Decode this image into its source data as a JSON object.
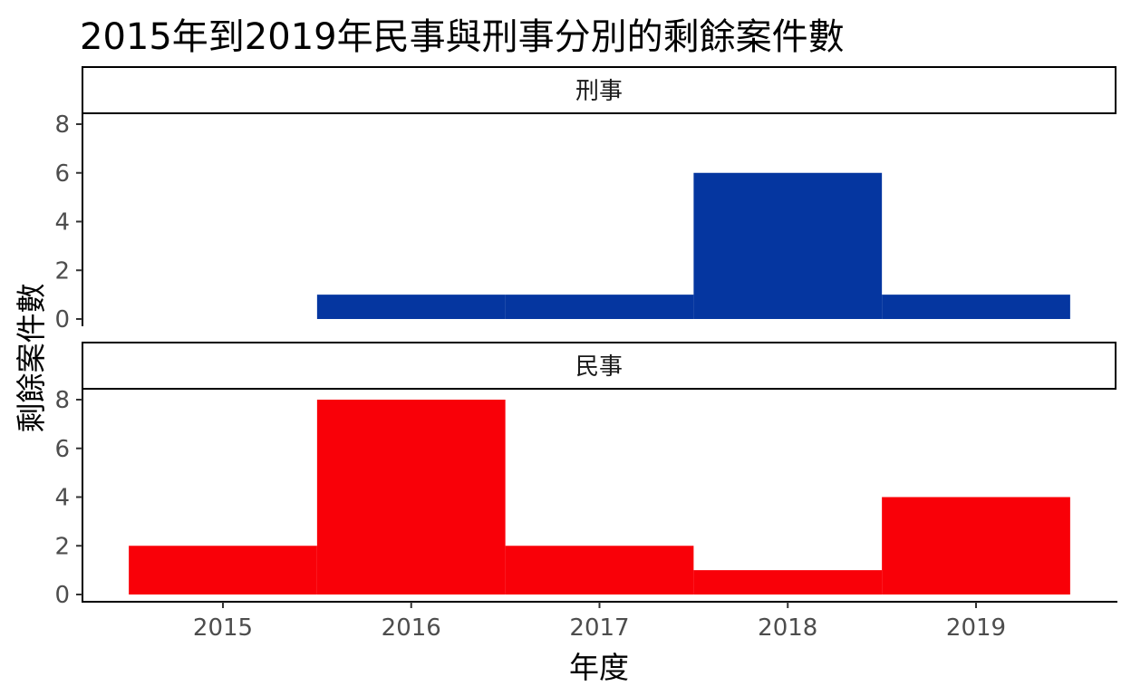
{
  "chart_data": {
    "type": "bar",
    "title": "2015年到2019年民事與刑事分別的剩餘案件數",
    "xlabel": "年度",
    "ylabel": "剩餘案件數",
    "categories": [
      "2015",
      "2016",
      "2017",
      "2018",
      "2019"
    ],
    "ylim": [
      0,
      8
    ],
    "yticks": [
      "0",
      "2",
      "4",
      "6",
      "8"
    ],
    "grid": false,
    "facets": [
      {
        "label": "刑事",
        "color": "#0536A0",
        "values": [
          0,
          1,
          1,
          6,
          1
        ]
      },
      {
        "label": "民事",
        "color": "#F90008",
        "values": [
          2,
          8,
          2,
          1,
          4
        ]
      }
    ]
  }
}
